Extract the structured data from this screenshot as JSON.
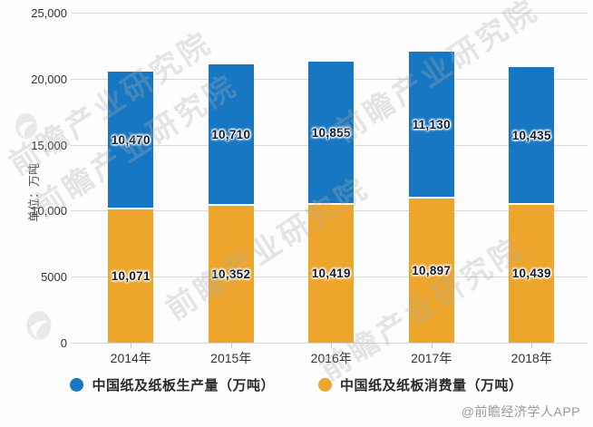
{
  "chart_data": {
    "type": "bar",
    "stacked": true,
    "title": "",
    "ylabel": "单位：万吨",
    "xlabel": "",
    "ylim": [
      0,
      25000
    ],
    "grid": true,
    "legend_position": "bottom",
    "categories": [
      "2014年",
      "2015年",
      "2016年",
      "2017年",
      "2018年"
    ],
    "series": [
      {
        "name": "中国纸及纸板消费量（万吨）",
        "color": "#eda62b",
        "values": [
          10071,
          10352,
          10419,
          10897,
          10439
        ]
      },
      {
        "name": "中国纸及纸板生产量（万吨）",
        "color": "#1777c2",
        "values": [
          10470,
          10710,
          10855,
          11130,
          10435
        ]
      }
    ],
    "yticks": [
      {
        "value": 0,
        "label": "0"
      },
      {
        "value": 5000,
        "label": "5000"
      },
      {
        "value": 10000,
        "label": "10,000"
      },
      {
        "value": 15000,
        "label": "15,000"
      },
      {
        "value": 20000,
        "label": "20,000"
      },
      {
        "value": 25000,
        "label": "25,000"
      }
    ]
  },
  "legend": [
    {
      "label": "中国纸及纸板生产量（万吨）",
      "color": "#1777c2"
    },
    {
      "label": "中国纸及纸板消费量（万吨）",
      "color": "#eda62b"
    }
  ],
  "watermark": {
    "text": "前瞻产业研究院"
  },
  "footer": {
    "credit": "@前瞻经济学人APP"
  }
}
